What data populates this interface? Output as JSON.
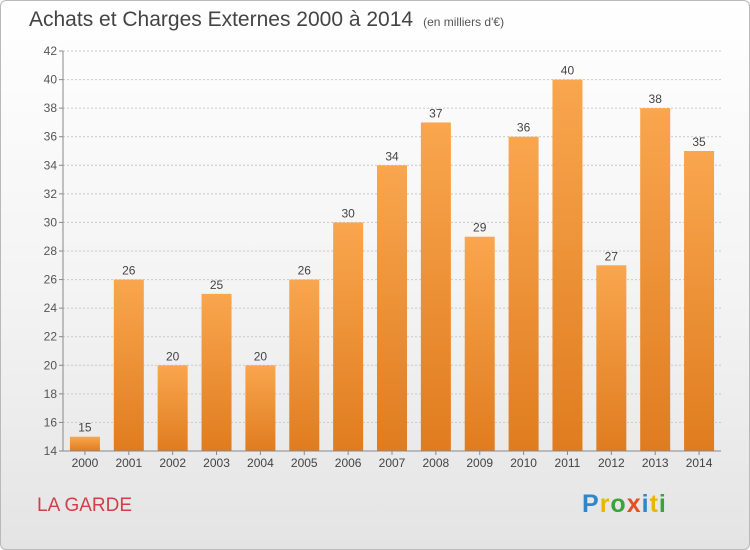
{
  "title": "Achats et Charges Externes 2000 à 2014",
  "subtitle": "(en milliers d'€)",
  "location": "LA GARDE",
  "logo": {
    "letters": [
      {
        "ch": "P",
        "color": "#2f86c8"
      },
      {
        "ch": "r",
        "color": "#e6b800"
      },
      {
        "ch": "o",
        "color": "#3aa33a"
      },
      {
        "ch": "x",
        "color": "#e0531f"
      },
      {
        "ch": "i",
        "color": "#2f86c8"
      },
      {
        "ch": "t",
        "color": "#e6b800"
      },
      {
        "ch": "i",
        "color": "#3aa33a"
      }
    ]
  },
  "colors": {
    "bar_light": "#f9a64e",
    "bar_dark": "#e07c1f",
    "grid": "#c9c9c9"
  },
  "chart_data": {
    "type": "bar",
    "categories": [
      "2000",
      "2001",
      "2002",
      "2003",
      "2004",
      "2005",
      "2006",
      "2007",
      "2008",
      "2009",
      "2010",
      "2011",
      "2012",
      "2013",
      "2014"
    ],
    "values": [
      15,
      26,
      20,
      25,
      20,
      26,
      30,
      34,
      37,
      29,
      36,
      40,
      27,
      38,
      35
    ],
    "ylim": [
      14,
      42
    ],
    "yticks": [
      14,
      16,
      18,
      20,
      22,
      24,
      26,
      28,
      30,
      32,
      34,
      36,
      38,
      40,
      42
    ],
    "grid": true,
    "xlabel": "",
    "ylabel": ""
  }
}
